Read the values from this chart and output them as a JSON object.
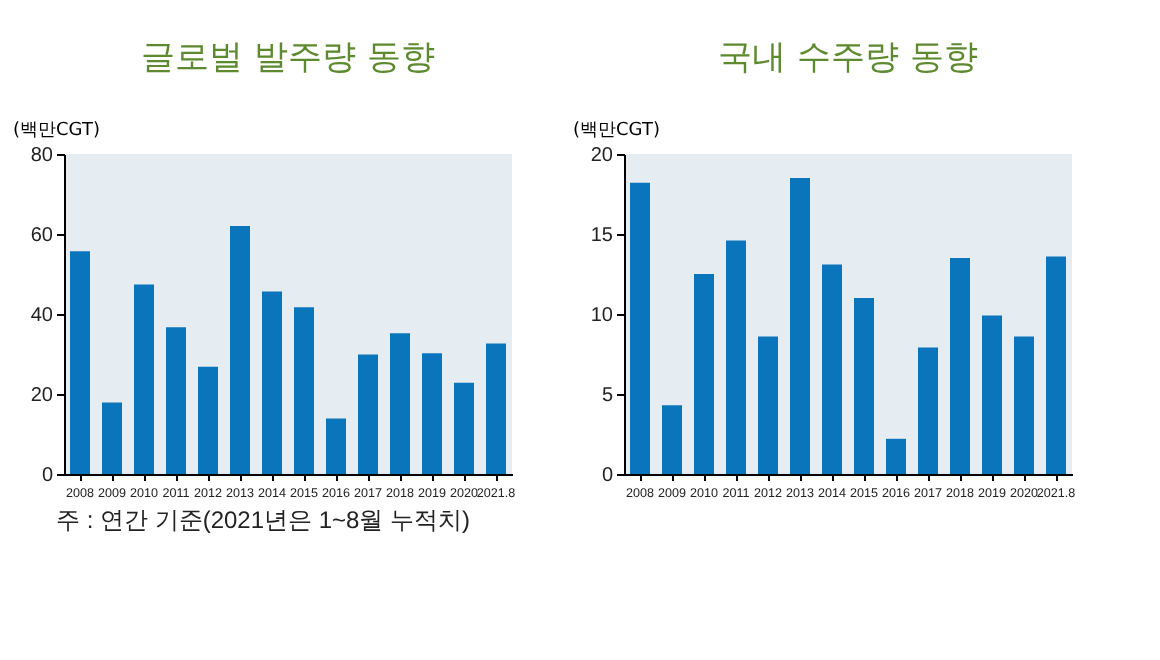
{
  "chart_data": [
    {
      "type": "bar",
      "title": "글로벌 발주량 동향",
      "ylabel": "(백만CGT)",
      "categories": [
        "2008",
        "2009",
        "2010",
        "2011",
        "2012",
        "2013",
        "2014",
        "2015",
        "2016",
        "2017",
        "2018",
        "2019",
        "2020",
        "2021.8"
      ],
      "values": [
        55.7,
        17.9,
        47.4,
        36.7,
        26.8,
        62,
        45.6,
        41.7,
        13.9,
        29.9,
        35.2,
        30.2,
        22.8,
        32.6
      ],
      "color": "#0a74bd",
      "ylim": [
        0,
        80
      ],
      "yticks": [
        0,
        20,
        40,
        60,
        80
      ],
      "grid": false,
      "annotations": [
        "주 : 연간 기준(2021년은 1~8월 누적치)"
      ]
    },
    {
      "type": "bar",
      "title": "국내 수주량 동향",
      "ylabel": "(백만CGT)",
      "categories": [
        "2008",
        "2009",
        "2010",
        "2011",
        "2012",
        "2013",
        "2014",
        "2015",
        "2016",
        "2017",
        "2018",
        "2019",
        "2020",
        "2021.8"
      ],
      "values": [
        18.2,
        4.3,
        12.5,
        14.6,
        8.6,
        18.5,
        13.1,
        11.0,
        2.2,
        7.9,
        13.5,
        9.9,
        8.6,
        13.6
      ],
      "color": "#0a74bd",
      "ylim": [
        0,
        20
      ],
      "yticks": [
        0,
        5,
        10,
        15,
        20
      ],
      "grid": false
    }
  ]
}
